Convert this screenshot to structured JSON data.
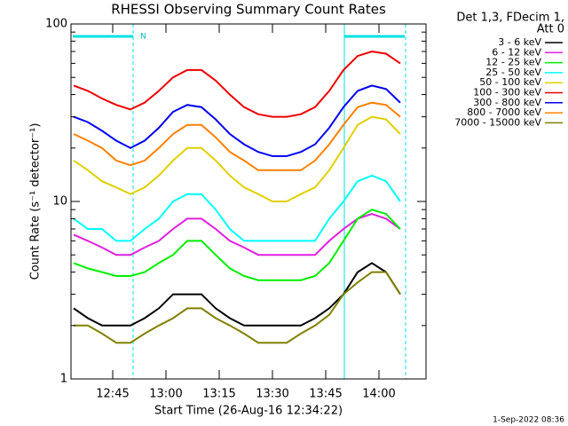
{
  "chart_data": {
    "type": "line",
    "title": "RHESSI Observing Summary Count Rates",
    "x_label": "Start Time (26-Aug-16 12:34:22)",
    "y_label": "Count Rate (s⁻¹ detector⁻¹)",
    "legend_title": [
      "Det 1,3, FDecim 1,",
      "Att 0"
    ],
    "annotation": "N",
    "footer": "1-Sep-2022 08:36",
    "log_y": true,
    "legend": "right",
    "xlim": [
      753.25,
      853.25
    ],
    "xticks": [
      {
        "value": 765,
        "label": "12:45"
      },
      {
        "value": 780,
        "label": "13:00"
      },
      {
        "value": 795,
        "label": "13:15"
      },
      {
        "value": 810,
        "label": "13:30"
      },
      {
        "value": 825,
        "label": "13:45"
      },
      {
        "value": 840,
        "label": "14:00"
      }
    ],
    "ylim": [
      1,
      100
    ],
    "yticks": [
      1,
      10,
      100
    ],
    "x": [
      754,
      758,
      762,
      766,
      770,
      774,
      778,
      782,
      786,
      790,
      794,
      798,
      802,
      806,
      810,
      814,
      818,
      822,
      826,
      830,
      834,
      838,
      842,
      846
    ],
    "series": [
      {
        "name": "3 - 6 keV",
        "color": "#000000",
        "values": [
          2.5,
          2.2,
          2,
          2,
          2,
          2.2,
          2.5,
          3,
          3,
          3,
          2.5,
          2.2,
          2,
          2,
          2,
          2,
          2,
          2.2,
          2.5,
          3,
          4,
          4.5,
          4,
          3
        ]
      },
      {
        "name": "6 - 12 keV",
        "color": "#e020e0",
        "values": [
          6.5,
          6,
          5.5,
          5,
          5,
          5.5,
          6,
          7,
          8,
          8,
          7,
          6,
          5.5,
          5,
          5,
          5,
          5,
          5,
          6,
          7,
          8,
          8.5,
          8,
          7
        ]
      },
      {
        "name": "12 - 25 keV",
        "color": "#00ee00",
        "values": [
          4.5,
          4.2,
          4,
          3.8,
          3.8,
          4,
          4.5,
          5,
          6,
          6,
          5,
          4.2,
          3.8,
          3.6,
          3.6,
          3.6,
          3.6,
          3.8,
          4.5,
          6,
          8,
          9,
          8.5,
          7
        ]
      },
      {
        "name": "25 - 50 keV",
        "color": "#00ffff",
        "values": [
          8,
          7,
          7,
          6,
          6,
          7,
          8,
          10,
          11,
          11,
          9,
          7,
          6,
          6,
          6,
          6,
          6,
          6,
          8,
          10,
          13,
          14,
          13,
          10
        ]
      },
      {
        "name": "50 - 100 keV",
        "color": "#e0d000",
        "values": [
          17,
          15,
          13,
          12,
          11,
          12,
          14,
          17,
          20,
          20,
          17,
          14,
          12,
          11,
          10,
          10,
          11,
          12,
          15,
          20,
          27,
          30,
          29,
          24
        ]
      },
      {
        "name": "100 - 300 keV",
        "color": "#ee0000",
        "values": [
          45,
          42,
          38,
          35,
          33,
          36,
          42,
          50,
          55,
          55,
          48,
          40,
          34,
          31,
          30,
          30,
          31,
          34,
          42,
          55,
          66,
          70,
          68,
          60
        ]
      },
      {
        "name": "300 - 800 keV",
        "color": "#0000ee",
        "values": [
          30,
          28,
          25,
          22,
          20,
          22,
          26,
          32,
          35,
          34,
          29,
          24,
          21,
          19,
          18,
          18,
          19,
          21,
          26,
          34,
          42,
          45,
          43,
          36
        ]
      },
      {
        "name": "800 - 7000 keV",
        "color": "#ff8000",
        "values": [
          24,
          22,
          20,
          17,
          16,
          17,
          20,
          24,
          27,
          27,
          23,
          19,
          17,
          15,
          15,
          15,
          15,
          17,
          21,
          27,
          34,
          36,
          35,
          30
        ]
      },
      {
        "name": "7000 - 15000 keV",
        "color": "#808000",
        "values": [
          2,
          2,
          1.8,
          1.6,
          1.6,
          1.8,
          2,
          2.2,
          2.5,
          2.5,
          2.2,
          2,
          1.8,
          1.6,
          1.6,
          1.6,
          1.8,
          2,
          2.3,
          3,
          3.5,
          4,
          4,
          3
        ]
      }
    ]
  }
}
